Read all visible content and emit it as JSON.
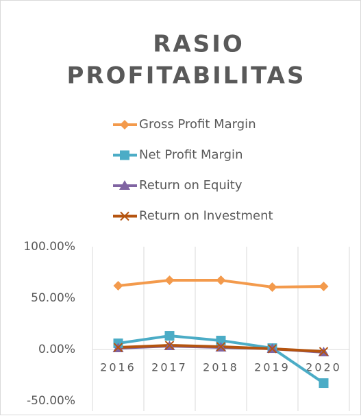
{
  "chart_data": {
    "type": "line",
    "title_lines": [
      "RASIO",
      "PROFITABILITAS"
    ],
    "categories": [
      "2016",
      "2017",
      "2018",
      "2019",
      "2020"
    ],
    "series": [
      {
        "name": "Gross Profit Margin",
        "color": "#f39a4c",
        "marker": "diamond",
        "values": [
          62,
          67.3,
          67.3,
          60.7,
          61.3
        ]
      },
      {
        "name": "Net Profit Margin",
        "color": "#4bacc6",
        "marker": "square",
        "values": [
          6,
          13.3,
          8.7,
          1.3,
          -32.7
        ]
      },
      {
        "name": "Return on Equity",
        "color": "#8064a2",
        "marker": "triangle",
        "values": [
          1.3,
          3.3,
          2,
          0.7,
          -2.7
        ]
      },
      {
        "name": "Return on Investment",
        "color": "#b5540f",
        "marker": "x",
        "values": [
          2,
          4,
          2.7,
          0.7,
          -2
        ]
      }
    ],
    "ylim": [
      -50,
      100
    ],
    "yticks": [
      {
        "value": -50,
        "label": "-50.00%"
      },
      {
        "value": 0,
        "label": "0.00%"
      },
      {
        "value": 50,
        "label": "50.00%"
      },
      {
        "value": 100,
        "label": "100.00%"
      }
    ],
    "grid": false,
    "legend": "top"
  }
}
